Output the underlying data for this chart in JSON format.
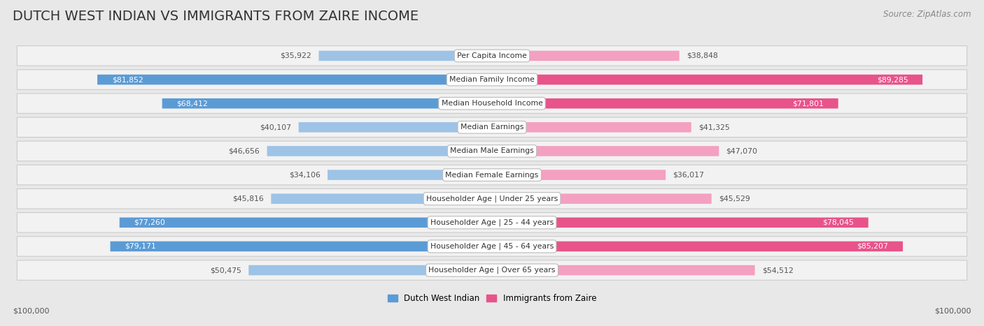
{
  "title": "DUTCH WEST INDIAN VS IMMIGRANTS FROM ZAIRE INCOME",
  "source": "Source: ZipAtlas.com",
  "categories": [
    "Per Capita Income",
    "Median Family Income",
    "Median Household Income",
    "Median Earnings",
    "Median Male Earnings",
    "Median Female Earnings",
    "Householder Age | Under 25 years",
    "Householder Age | 25 - 44 years",
    "Householder Age | 45 - 64 years",
    "Householder Age | Over 65 years"
  ],
  "left_values": [
    35922,
    81852,
    68412,
    40107,
    46656,
    34106,
    45816,
    77260,
    79171,
    50475
  ],
  "right_values": [
    38848,
    89285,
    71801,
    41325,
    47070,
    36017,
    45529,
    78045,
    85207,
    54512
  ],
  "left_labels": [
    "$35,922",
    "$81,852",
    "$68,412",
    "$40,107",
    "$46,656",
    "$34,106",
    "$45,816",
    "$77,260",
    "$79,171",
    "$50,475"
  ],
  "right_labels": [
    "$38,848",
    "$89,285",
    "$71,801",
    "$41,325",
    "$47,070",
    "$36,017",
    "$45,529",
    "$78,045",
    "$85,207",
    "$54,512"
  ],
  "left_color_large": "#5b9bd5",
  "left_color_small": "#9dc3e6",
  "right_color_large": "#e8538a",
  "right_color_small": "#f4a0c0",
  "large_threshold": 55000,
  "max_value": 100000,
  "background_color": "#e8e8e8",
  "row_bg_color": "#f2f2f2",
  "label_box_color": "#ffffff",
  "title_fontsize": 14,
  "source_fontsize": 8.5,
  "legend_label_left": "Dutch West Indian",
  "legend_label_right": "Immigrants from Zaire",
  "axis_label_left": "$100,000",
  "axis_label_right": "$100,000"
}
